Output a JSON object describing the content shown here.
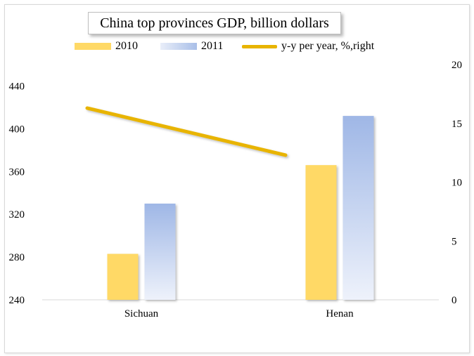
{
  "chart_data": {
    "type": "bar",
    "title": "China top provinces GDP, billion dollars",
    "categories": [
      "Sichuan",
      "Henan"
    ],
    "series": [
      {
        "name": "2010",
        "type": "bar",
        "axis": "left",
        "values": [
          283,
          366
        ],
        "color": "#ffd966"
      },
      {
        "name": "2011",
        "type": "bar",
        "axis": "left",
        "values": [
          330,
          412
        ],
        "color": "#a9bfe8"
      },
      {
        "name": "y-y per year, %,right",
        "type": "line",
        "axis": "right",
        "values": [
          16.3,
          12.3
        ],
        "color": "#e8b400"
      }
    ],
    "y_left": {
      "min": 240,
      "max": 460,
      "ticks": [
        240,
        280,
        320,
        360,
        400,
        440
      ]
    },
    "y_right": {
      "min": 0,
      "max": 20,
      "ticks": [
        0,
        5,
        10,
        15,
        20
      ]
    },
    "legend_position": "top",
    "grid": false
  }
}
